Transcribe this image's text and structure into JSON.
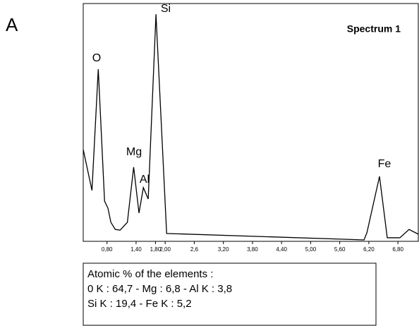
{
  "chart_data": {
    "type": "line",
    "panel_label": "A",
    "title": "Spectrum 1",
    "x": [
      0.31,
      0.49,
      0.62,
      0.75,
      0.82,
      0.88,
      0.97,
      1.07,
      1.22,
      1.35,
      1.46,
      1.55,
      1.65,
      1.81,
      2.03,
      6.1,
      6.16,
      6.42,
      6.58,
      6.84,
      7.03,
      7.22
    ],
    "series": [
      {
        "color": "#000000",
        "values": [
          38.6,
          21.4,
          72.4,
          16.9,
          13.9,
          8.0,
          5.0,
          4.7,
          8.0,
          31.2,
          11.9,
          22.6,
          17.8,
          95.5,
          3.3,
          0.6,
          3.6,
          27.3,
          1.5,
          1.5,
          5.0,
          3.0
        ]
      }
    ],
    "xlim": [
      0.31,
      7.22
    ],
    "ylim": [
      0,
      100
    ],
    "xticks": [
      {
        "value": 0.8,
        "label": "0,80"
      },
      {
        "value": 1.4,
        "label": "1,40"
      },
      {
        "value": 1.8,
        "label": "1,80"
      },
      {
        "value": 2.0,
        "label": "2,00"
      },
      {
        "value": 2.6,
        "label": "2,6"
      },
      {
        "value": 3.2,
        "label": "3,20"
      },
      {
        "value": 3.8,
        "label": "3,80"
      },
      {
        "value": 4.4,
        "label": "4,40"
      },
      {
        "value": 5.0,
        "label": "5,00"
      },
      {
        "value": 5.6,
        "label": "5,60"
      },
      {
        "value": 6.2,
        "label": "6,20"
      },
      {
        "value": 6.8,
        "label": "6,80"
      }
    ],
    "annotations": [
      "O",
      "Mg",
      "Al",
      "Si",
      "Fe"
    ],
    "info": [
      "Atomic % of the elements :",
      "0 K : 64,7 - Mg : 6,8 - Al K : 3,8",
      "Si K : 19,4 - Fe K : 5,2"
    ]
  }
}
